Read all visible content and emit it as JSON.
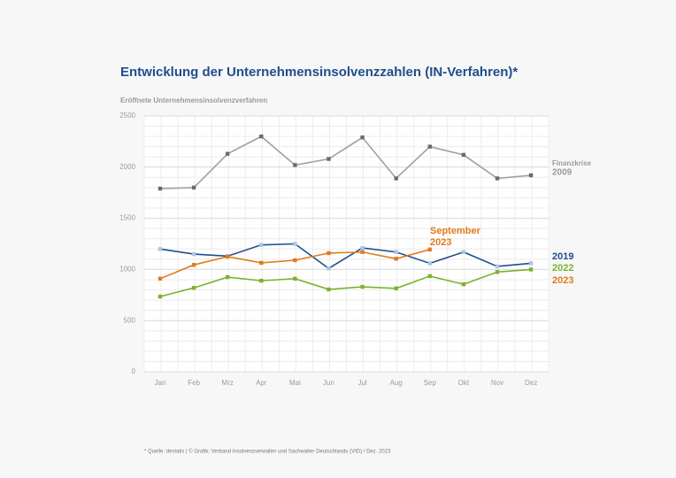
{
  "chart_data": {
    "type": "line",
    "title": "Entwicklung der Unternehmensinsolvenzzahlen (IN-Verfahren)*",
    "subtitle": "Eröffnete Unternehmensinsolvenzverfahren",
    "categories": [
      "Jan",
      "Feb",
      "Mrz",
      "Apr",
      "Mai",
      "Jun",
      "Jul",
      "Aug",
      "Sep",
      "Okt",
      "Nov",
      "Dez"
    ],
    "series": [
      {
        "name": "2009",
        "color": "#a0a0a0",
        "marker_color": "#6b6b6b",
        "values": [
          1790,
          1800,
          2130,
          2300,
          2020,
          2080,
          2290,
          1890,
          2200,
          2120,
          1890,
          1920
        ]
      },
      {
        "name": "2019",
        "color": "#1f4e8c",
        "marker_color": "#a9c4e8",
        "values": [
          1200,
          1150,
          1130,
          1240,
          1250,
          1010,
          1210,
          1170,
          1060,
          1170,
          1030,
          1060
        ]
      },
      {
        "name": "2022",
        "color": "#7ab32e",
        "marker_color": "#7ab32e",
        "values": [
          735,
          820,
          925,
          890,
          910,
          805,
          830,
          815,
          935,
          855,
          975,
          1000
        ]
      },
      {
        "name": "2023",
        "color": "#e07b1a",
        "marker_color": "#e07b1a",
        "values": [
          910,
          1045,
          1125,
          1065,
          1090,
          1160,
          1170,
          1105,
          1195,
          null,
          null,
          null
        ]
      }
    ],
    "series_note": "Finanzkrise",
    "annotation": "September 2023",
    "ylim": [
      0,
      2500
    ],
    "yticks": [
      0,
      500,
      1000,
      1500,
      2000,
      2500
    ],
    "grid": true,
    "footer": "* Quelle: destatis | © Grafik: Verband Insolvenzverwalter und Sachwalter Deutschlands (VID) / Dez. 2023"
  }
}
